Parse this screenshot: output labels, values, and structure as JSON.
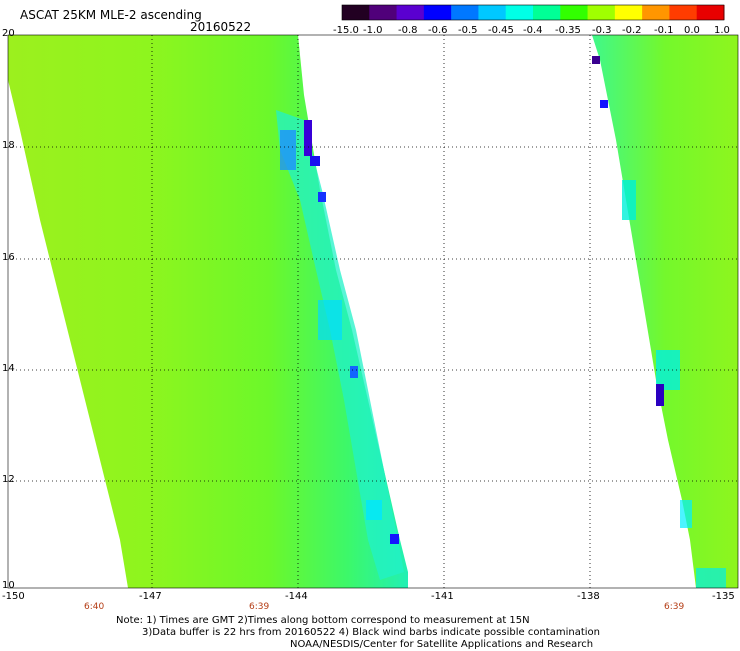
{
  "title": "ASCAT 25KM MLE-2 ascending",
  "date": "20160522",
  "colorbar": {
    "labels": [
      "-15.0",
      "-1.0",
      "-0.8",
      "-0.6",
      "-0.5",
      "-0.45",
      "-0.4",
      "-0.35",
      "-0.3",
      "-0.2",
      "-0.1",
      "0.0",
      "1.0"
    ],
    "colors": [
      "#220022",
      "#50007a",
      "#5a00d0",
      "#0000ff",
      "#0078ff",
      "#00c8ff",
      "#00ffe6",
      "#00ff96",
      "#32ff00",
      "#a0ff00",
      "#ffff00",
      "#ff9600",
      "#ff3c00",
      "#e80000"
    ]
  },
  "lat_labels": [
    "20",
    "18",
    "16",
    "14",
    "12",
    "10"
  ],
  "lon_labels": [
    "-150",
    "-147",
    "-144",
    "-141",
    "-138",
    "-135"
  ],
  "time_labels": [
    "6:40",
    "6:39",
    "6:39"
  ],
  "colors": {
    "swath_base": "#7cfc20",
    "swath_light": "#a6f51a",
    "swath_cyan": "#00ffcc",
    "swath_blue": "#1e64ff",
    "swath_dark": "#3a00c8",
    "time_color": "#b43c14"
  },
  "notes": [
    "Note: 1) Times are GMT 2)Times along bottom correspond to measurement at 15N",
    "3)Data buffer is 22 hrs from 20160522 4) Black wind barbs indicate possible contamination",
    "NOAA/NESDIS/Center for Satellite Applications and Research"
  ]
}
